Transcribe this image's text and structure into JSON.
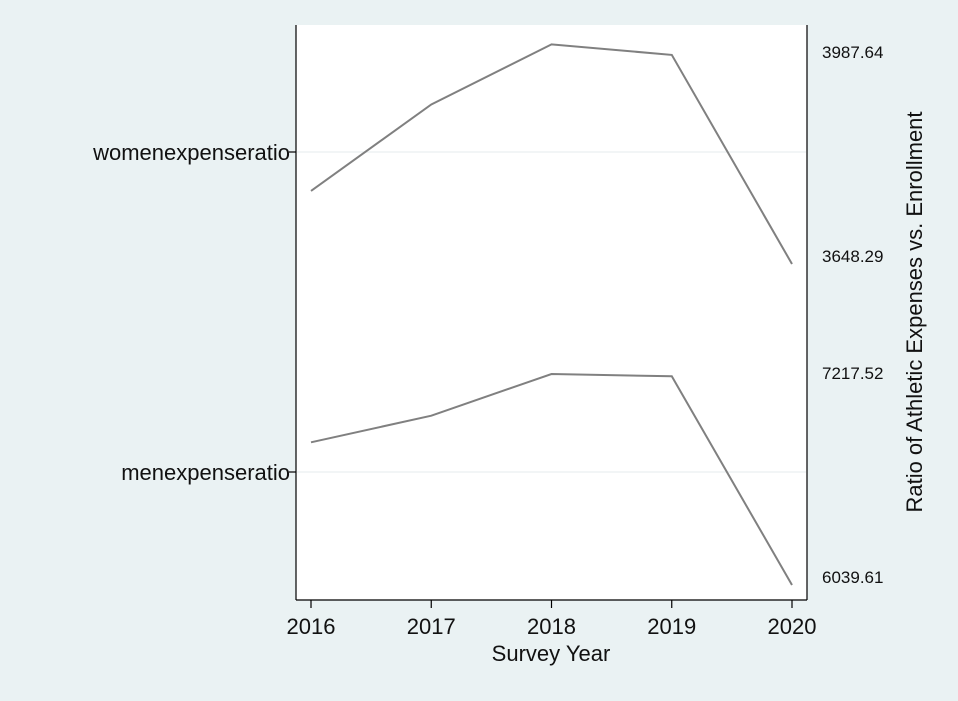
{
  "chart_data": {
    "type": "line",
    "subtype": "multi-panel stacked line (shared x axis)",
    "xlabel": "Survey Year",
    "ylabel": "Ratio of Athletic Expenses vs. Enrollment",
    "x": [
      2016,
      2017,
      2018,
      2019,
      2020
    ],
    "x_ticks": [
      "2016",
      "2017",
      "2018",
      "2019",
      "2020"
    ],
    "grid": "horizontal at panel label",
    "colors": {
      "background": "#eaf2f3",
      "plot_background": "#ffffff",
      "line": "#808080",
      "grid": "#eef2f3",
      "axis": "#000000"
    },
    "series": [
      {
        "name": "womenexpenseratio",
        "values": [
          3759,
          3890,
          3981,
          3965,
          3648.29
        ],
        "ylim": [
          3648.29,
          3987.64
        ],
        "ylim_labels": [
          "3648.29",
          "3987.64"
        ]
      },
      {
        "name": "menexpenseratio",
        "values": [
          6790,
          6930,
          7149,
          7137,
          6039.61
        ],
        "ylim": [
          6039.61,
          7217.52
        ],
        "ylim_labels": [
          "6039.61",
          "7217.52"
        ]
      }
    ]
  }
}
